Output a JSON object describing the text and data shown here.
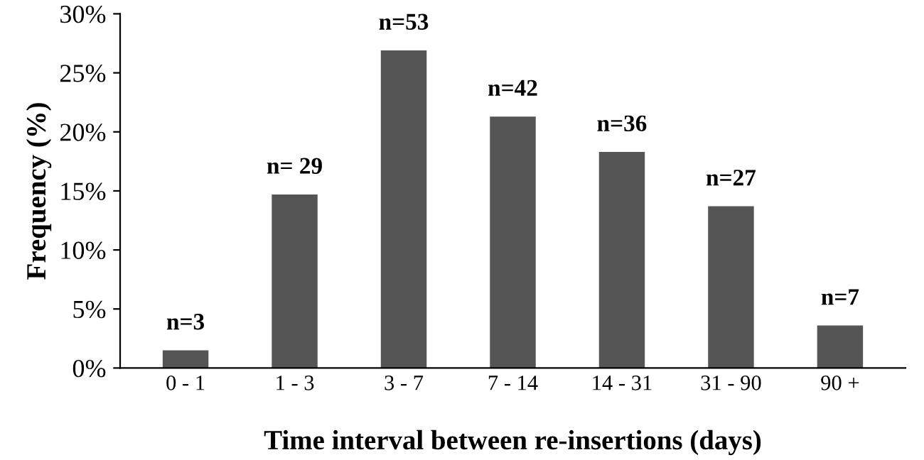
{
  "chart_data": {
    "type": "bar",
    "xlabel": "Time interval between re-insertions (days)",
    "ylabel": "Frequency (%)",
    "categories": [
      "0 - 1",
      "1 - 3",
      "3 - 7",
      "7 - 14",
      "14 - 31",
      "31 - 90",
      "90 +"
    ],
    "values": [
      1.5,
      14.7,
      26.9,
      21.3,
      18.3,
      13.7,
      3.6
    ],
    "annotations": [
      {
        "text": "n=3",
        "x": "0 - 1",
        "y": 1.5
      },
      {
        "text": "n= 29",
        "x": "1 - 3",
        "y": 14.7
      },
      {
        "text": "n=53",
        "x": "3 - 7",
        "y": 26.9
      },
      {
        "text": "n=42",
        "x": "7 - 14",
        "y": 21.3
      },
      {
        "text": "n=36",
        "x": "14 - 31",
        "y": 18.3
      },
      {
        "text": "n=27",
        "x": "31 - 90",
        "y": 13.7
      },
      {
        "text": "n=7",
        "x": "90 +",
        "y": 3.6
      }
    ],
    "color": "#555555",
    "ylim": [
      0,
      30
    ],
    "yticks": [
      {
        "value": 0,
        "label": "0%"
      },
      {
        "value": 5,
        "label": "5%"
      },
      {
        "value": 10,
        "label": "10%"
      },
      {
        "value": 15,
        "label": "15%"
      },
      {
        "value": 20,
        "label": "20%"
      },
      {
        "value": 25,
        "label": "25%"
      },
      {
        "value": 30,
        "label": "30%"
      }
    ],
    "grid": false
  }
}
